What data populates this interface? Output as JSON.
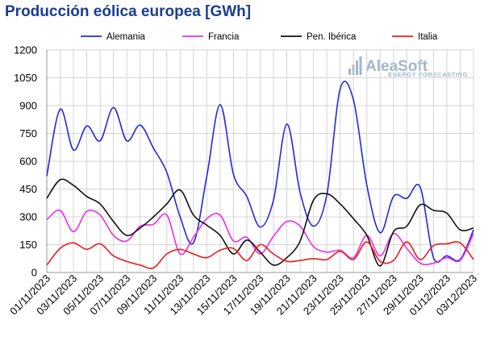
{
  "title": "Producción eólica europea [GWh]",
  "logo": {
    "name": "AleaSoft",
    "tagline": "ENERGY FORECASTING"
  },
  "chart_data": {
    "type": "line",
    "y_ticks": [
      "0",
      "150",
      "300",
      "450",
      "600",
      "750",
      "900",
      "1050",
      "1200"
    ],
    "ylim": [
      0,
      1200
    ],
    "grid": true,
    "legend_position": "top",
    "x_tick_labels": [
      "01/11/2023",
      "03/11/2023",
      "05/11/2023",
      "07/11/2023",
      "09/11/2023",
      "11/11/2023",
      "13/11/2023",
      "15/11/2023",
      "17/11/2023",
      "19/11/2023",
      "21/11/2023",
      "23/11/2023",
      "25/11/2023",
      "27/11/2023",
      "29/11/2023",
      "01/12/2023",
      "03/12/2023"
    ],
    "x": [
      "01/11/2023",
      "02/11/2023",
      "03/11/2023",
      "04/11/2023",
      "05/11/2023",
      "06/11/2023",
      "07/11/2023",
      "08/11/2023",
      "09/11/2023",
      "10/11/2023",
      "11/11/2023",
      "12/11/2023",
      "13/11/2023",
      "14/11/2023",
      "15/11/2023",
      "16/11/2023",
      "17/11/2023",
      "18/11/2023",
      "19/11/2023",
      "20/11/2023",
      "21/11/2023",
      "22/11/2023",
      "23/11/2023",
      "24/11/2023",
      "25/11/2023",
      "26/11/2023",
      "27/11/2023",
      "28/11/2023",
      "29/11/2023",
      "30/11/2023",
      "01/12/2023",
      "02/12/2023",
      "03/12/2023"
    ],
    "series": [
      {
        "name": "Alemania",
        "color": "#1f2bdc",
        "values": [
          520,
          880,
          660,
          790,
          710,
          890,
          710,
          795,
          670,
          540,
          300,
          160,
          520,
          905,
          530,
          410,
          245,
          390,
          800,
          430,
          250,
          420,
          990,
          930,
          470,
          215,
          410,
          400,
          460,
          80,
          90,
          70,
          230
        ]
      },
      {
        "name": "Francia",
        "color": "#ee2ee8",
        "values": [
          285,
          335,
          220,
          330,
          310,
          200,
          170,
          250,
          260,
          310,
          100,
          190,
          290,
          310,
          170,
          190,
          100,
          195,
          275,
          250,
          140,
          110,
          120,
          80,
          200,
          90,
          210,
          130,
          50,
          50,
          80,
          65,
          210
        ]
      },
      {
        "name": "Pen. Ibérica",
        "color": "#111111",
        "values": [
          400,
          500,
          470,
          410,
          370,
          275,
          200,
          240,
          300,
          370,
          445,
          310,
          255,
          200,
          100,
          175,
          110,
          40,
          80,
          170,
          390,
          425,
          370,
          290,
          200,
          35,
          220,
          250,
          365,
          335,
          320,
          230,
          240
        ]
      },
      {
        "name": "Italia",
        "color": "#ee1b1b",
        "values": [
          40,
          130,
          160,
          125,
          155,
          90,
          60,
          40,
          25,
          100,
          125,
          100,
          80,
          120,
          130,
          65,
          150,
          100,
          60,
          65,
          75,
          70,
          115,
          70,
          165,
          60,
          65,
          165,
          70,
          145,
          155,
          160,
          70
        ]
      }
    ]
  }
}
